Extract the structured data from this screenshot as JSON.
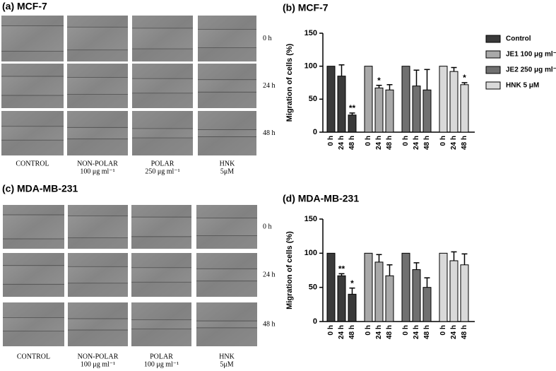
{
  "panels": [
    {
      "title": "(a) MCF-7",
      "rows": [
        "0 h",
        "24 h",
        "48 h"
      ],
      "columns": [
        [
          "CONTROL"
        ],
        [
          "NON-POLAR",
          "100 μg ml⁻¹"
        ],
        [
          "POLAR",
          "250 μg ml⁻¹"
        ],
        [
          "HNK",
          "5μM"
        ]
      ]
    },
    {
      "title": "(c) MDA-MB-231",
      "rows": [
        "0 h",
        "24 h",
        "48 h"
      ],
      "columns": [
        [
          "CONTROL"
        ],
        [
          "NON-POLAR",
          "100 μg ml⁻¹"
        ],
        [
          "POLAR",
          "100 μg ml⁻¹"
        ],
        [
          "HNK",
          "5μM"
        ]
      ]
    }
  ],
  "chart_data": [
    {
      "type": "bar",
      "title": "(b) MCF-7",
      "y_label": "Migration of cells (%)",
      "categories": [
        "0 h",
        "24 h",
        "48 h"
      ],
      "ylim": [
        0,
        150
      ],
      "yticks": [
        0,
        50,
        100,
        150
      ],
      "legend": "right",
      "series": [
        {
          "name": "Control",
          "color": "#3a3a3a",
          "values": [
            100,
            85,
            26
          ],
          "errors": [
            0,
            17,
            3
          ],
          "annotations": [
            null,
            null,
            "**"
          ]
        },
        {
          "name": "JE1 100 μg ml⁻¹",
          "color": "#a9a9a9",
          "values": [
            100,
            67,
            64
          ],
          "errors": [
            0,
            4,
            8
          ],
          "annotations": [
            null,
            "*",
            null
          ]
        },
        {
          "name": "JE2 250 μg ml⁻¹",
          "color": "#707070",
          "values": [
            100,
            70,
            64
          ],
          "errors": [
            0,
            24,
            31
          ],
          "annotations": [
            null,
            null,
            null
          ]
        },
        {
          "name": "HNK 5 μM",
          "color": "#d9d9d9",
          "values": [
            100,
            92,
            72
          ],
          "errors": [
            0,
            6,
            3
          ],
          "annotations": [
            null,
            null,
            "*"
          ]
        }
      ]
    },
    {
      "type": "bar",
      "title": "(d) MDA-MB-231",
      "y_label": "Migration of cells (%)",
      "categories": [
        "0 h",
        "24 h",
        "48 h"
      ],
      "ylim": [
        0,
        150
      ],
      "yticks": [
        0,
        50,
        100,
        150
      ],
      "series": [
        {
          "color": "#3a3a3a",
          "values": [
            100,
            67,
            40
          ],
          "errors": [
            0,
            3,
            9
          ],
          "annotations": [
            null,
            "**",
            "*"
          ]
        },
        {
          "color": "#a9a9a9",
          "values": [
            100,
            87,
            67
          ],
          "errors": [
            0,
            11,
            16
          ],
          "annotations": [
            null,
            null,
            null
          ]
        },
        {
          "color": "#707070",
          "values": [
            100,
            76,
            50
          ],
          "errors": [
            0,
            10,
            14
          ],
          "annotations": [
            null,
            null,
            null
          ]
        },
        {
          "color": "#d9d9d9",
          "values": [
            100,
            89,
            83
          ],
          "errors": [
            0,
            13,
            16
          ],
          "annotations": [
            null,
            null,
            null
          ]
        }
      ]
    }
  ]
}
